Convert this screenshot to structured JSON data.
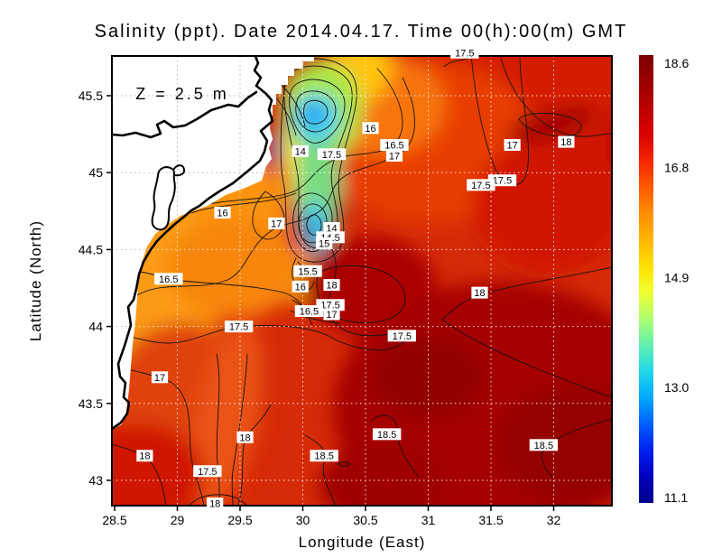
{
  "title": "Salinity (ppt). Date 2014.04.17. Time 00(h):00(m) GMT",
  "annotation": "Z = 2.5 m",
  "axes": {
    "x": {
      "title": "Longitude (East)",
      "ticks": [
        {
          "value": 28.5,
          "label": "28.5"
        },
        {
          "value": 29,
          "label": "29"
        },
        {
          "value": 29.5,
          "label": "29.5"
        },
        {
          "value": 30,
          "label": "30"
        },
        {
          "value": 30.5,
          "label": "30.5"
        },
        {
          "value": 31,
          "label": "31"
        },
        {
          "value": 31.5,
          "label": "31.5"
        },
        {
          "value": 32,
          "label": "32"
        }
      ],
      "gridline_values": [
        29,
        29.5,
        30,
        30.5,
        31,
        31.5,
        32
      ]
    },
    "y": {
      "title": "Latitude (North)",
      "ticks": [
        {
          "value": 45.5,
          "label": "45.5"
        },
        {
          "value": 45,
          "label": "45"
        },
        {
          "value": 44.5,
          "label": "44.5"
        },
        {
          "value": 44,
          "label": "44"
        },
        {
          "value": 43.5,
          "label": "43.5"
        },
        {
          "value": 43,
          "label": "43"
        }
      ],
      "gridline_values": [
        45.5,
        45,
        44.5,
        44,
        43.5,
        43
      ]
    }
  },
  "colorbar": {
    "min": 11.1,
    "max": 18.6,
    "tick_labels": [
      "18.6",
      "16.8",
      "14.9",
      "13.0",
      "11.1"
    ],
    "tick_values": [
      18.6,
      16.8,
      14.9,
      13.0,
      11.1
    ],
    "gradient_top_to_bottom": [
      "#7d0000",
      "#9b0000",
      "#bb0000",
      "#d90000",
      "#f52400",
      "#ff5a00",
      "#ff8c00",
      "#ffb600",
      "#ffe000",
      "#f0ff30",
      "#b0ff70",
      "#60f0b0",
      "#20d8e8",
      "#00a8ff",
      "#0060ff",
      "#0020f0",
      "#0000c0",
      "#00008b"
    ]
  },
  "chart_data": {
    "type": "heatmap",
    "subtype": "filled-contour-map",
    "title": "Salinity (ppt). Date 2014.04.17. Time 00(h):00(m) GMT",
    "variable": "Salinity",
    "units": "ppt",
    "date": "2014.04.17",
    "time": "00(h):00(m)",
    "timezone": "GMT",
    "depth_annotation": "Z = 2.5 m",
    "xlabel": "Longitude (East)",
    "ylabel": "Latitude (North)",
    "xlim": [
      28.48,
      32.46
    ],
    "ylim": [
      42.84,
      45.76
    ],
    "grid": true,
    "legend_position": "right-colorbar",
    "value_range": [
      11.1,
      18.6
    ],
    "colorbar_ticks": [
      18.6,
      16.8,
      14.9,
      13.0,
      11.1
    ],
    "contour_interval": 0.5,
    "contour_levels": [
      14,
      14.5,
      15,
      15.5,
      16,
      16.5,
      17,
      17.5,
      18,
      18.5
    ],
    "contour_labels": [
      {
        "label": "17.5",
        "lon": 31.29,
        "lat": 45.78
      },
      {
        "label": "16",
        "lon": 30.54,
        "lat": 45.29
      },
      {
        "label": "16.5",
        "lon": 30.73,
        "lat": 45.18
      },
      {
        "label": "17",
        "lon": 30.73,
        "lat": 45.11
      },
      {
        "label": "17.5",
        "lon": 30.23,
        "lat": 45.12
      },
      {
        "label": "14",
        "lon": 29.98,
        "lat": 45.14
      },
      {
        "label": "14",
        "lon": 30.23,
        "lat": 44.64
      },
      {
        "label": "14.5",
        "lon": 30.22,
        "lat": 44.58
      },
      {
        "label": "15",
        "lon": 30.17,
        "lat": 44.54
      },
      {
        "label": "15.5",
        "lon": 30.04,
        "lat": 44.36
      },
      {
        "label": "16",
        "lon": 29.98,
        "lat": 44.26
      },
      {
        "label": "18",
        "lon": 30.23,
        "lat": 44.27
      },
      {
        "label": "17.5",
        "lon": 30.22,
        "lat": 44.14
      },
      {
        "label": "16.5",
        "lon": 30.05,
        "lat": 44.1
      },
      {
        "label": "17",
        "lon": 30.23,
        "lat": 44.08
      },
      {
        "label": "17",
        "lon": 29.79,
        "lat": 44.67
      },
      {
        "label": "16",
        "lon": 29.36,
        "lat": 44.74
      },
      {
        "label": "16.5",
        "lon": 28.93,
        "lat": 44.31
      },
      {
        "label": "17",
        "lon": 31.67,
        "lat": 45.18
      },
      {
        "label": "18",
        "lon": 32.1,
        "lat": 45.2
      },
      {
        "label": "17.5",
        "lon": 31.59,
        "lat": 44.95
      },
      {
        "label": "17.5",
        "lon": 31.42,
        "lat": 44.92
      },
      {
        "label": "18",
        "lon": 31.41,
        "lat": 44.22
      },
      {
        "label": "17.5",
        "lon": 30.79,
        "lat": 43.94
      },
      {
        "label": "17.5",
        "lon": 29.49,
        "lat": 44.0
      },
      {
        "label": "17",
        "lon": 28.86,
        "lat": 43.67
      },
      {
        "label": "18",
        "lon": 29.54,
        "lat": 43.28
      },
      {
        "label": "18",
        "lon": 28.74,
        "lat": 43.16
      },
      {
        "label": "17.5",
        "lon": 29.24,
        "lat": 43.06
      },
      {
        "label": "18",
        "lon": 29.3,
        "lat": 42.85
      },
      {
        "label": "18.5",
        "lon": 30.17,
        "lat": 43.16
      },
      {
        "label": "18.5",
        "lon": 30.67,
        "lat": 43.3
      },
      {
        "label": "18.5",
        "lon": 31.92,
        "lat": 43.23
      }
    ]
  }
}
